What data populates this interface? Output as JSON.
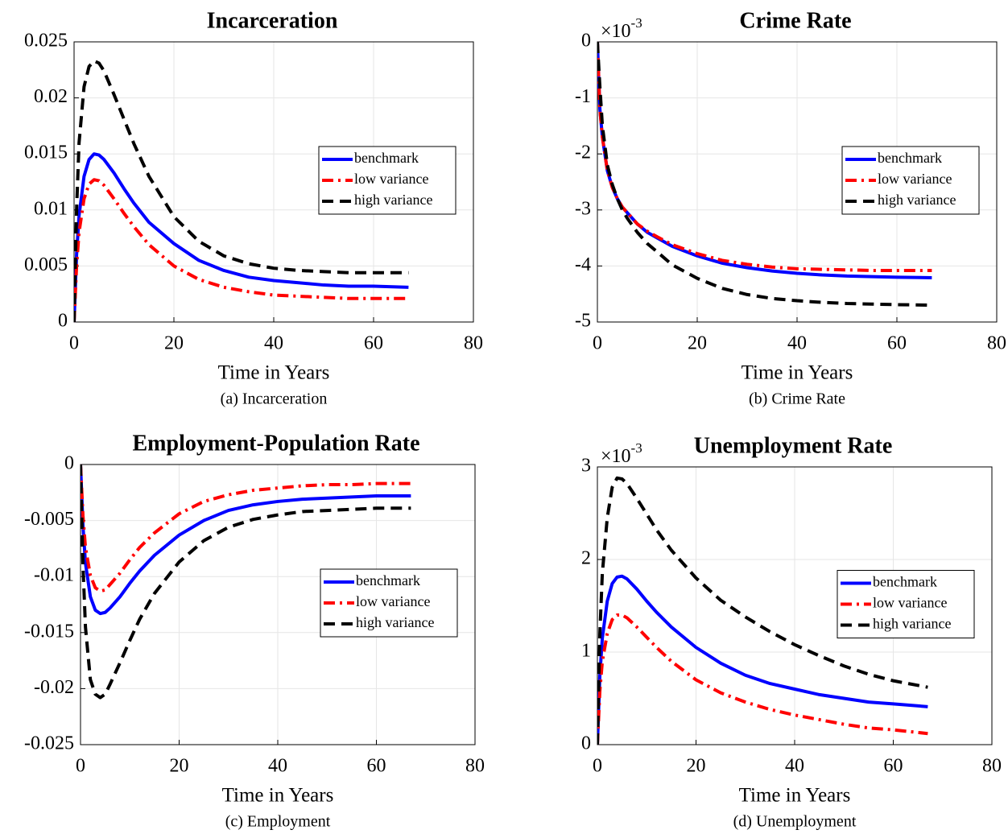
{
  "chart_data": [
    {
      "type": "line",
      "title": "Incarceration",
      "xlabel": "Time in Years",
      "caption": "(a) Incarceration",
      "x": [
        0,
        0.5,
        1,
        2,
        3,
        4,
        5,
        6,
        8,
        10,
        12,
        15,
        20,
        25,
        30,
        35,
        40,
        45,
        50,
        55,
        60,
        67
      ],
      "series": [
        {
          "name": "benchmark",
          "color": "#0000ff",
          "linestyle": "solid",
          "values": [
            0,
            0.006,
            0.0095,
            0.013,
            0.0145,
            0.015,
            0.0149,
            0.0145,
            0.0133,
            0.0119,
            0.0106,
            0.0089,
            0.007,
            0.0055,
            0.0046,
            0.004,
            0.0037,
            0.0035,
            0.0033,
            0.0032,
            0.0032,
            0.0031
          ]
        },
        {
          "name": "low variance",
          "color": "#ff0000",
          "linestyle": "dashdot",
          "values": [
            0,
            0.005,
            0.008,
            0.011,
            0.0123,
            0.0127,
            0.0126,
            0.0122,
            0.011,
            0.0097,
            0.0085,
            0.0069,
            0.005,
            0.0038,
            0.0031,
            0.0027,
            0.0024,
            0.0023,
            0.0022,
            0.0021,
            0.0021,
            0.0021
          ]
        },
        {
          "name": "high variance",
          "color": "#000000",
          "linestyle": "dashed",
          "values": [
            0,
            0.01,
            0.016,
            0.021,
            0.0228,
            0.0233,
            0.0231,
            0.0224,
            0.0203,
            0.0181,
            0.0159,
            0.013,
            0.0094,
            0.0072,
            0.0059,
            0.0052,
            0.0048,
            0.0046,
            0.0045,
            0.0044,
            0.0044,
            0.0044
          ]
        }
      ],
      "xlim": [
        0,
        80
      ],
      "xticks": [
        0,
        20,
        40,
        60,
        80
      ],
      "ylim": [
        0,
        0.025
      ],
      "yticks": [
        0,
        0.005,
        0.01,
        0.015,
        0.02,
        0.025
      ],
      "grid": true,
      "legend": "east"
    },
    {
      "type": "line",
      "title": "Crime Rate",
      "xlabel": "Time in Years",
      "caption": "(b) Crime Rate",
      "y_exponent": {
        "base": "×10",
        "power": "-3"
      },
      "x": [
        0,
        0.5,
        1,
        2,
        3,
        4,
        5,
        6,
        8,
        10,
        12,
        15,
        20,
        25,
        30,
        35,
        40,
        45,
        50,
        55,
        60,
        67
      ],
      "series": [
        {
          "name": "benchmark",
          "color": "#0000ff",
          "linestyle": "solid",
          "values": [
            0,
            -1.2,
            -1.7,
            -2.3,
            -2.6,
            -2.8,
            -2.95,
            -3.05,
            -3.25,
            -3.4,
            -3.5,
            -3.65,
            -3.82,
            -3.95,
            -4.03,
            -4.09,
            -4.13,
            -4.16,
            -4.18,
            -4.19,
            -4.2,
            -4.21
          ]
        },
        {
          "name": "low variance",
          "color": "#ff0000",
          "linestyle": "dashdot",
          "values": [
            0,
            -1.2,
            -1.7,
            -2.3,
            -2.6,
            -2.8,
            -2.95,
            -3.05,
            -3.25,
            -3.38,
            -3.48,
            -3.62,
            -3.78,
            -3.9,
            -3.97,
            -4.02,
            -4.05,
            -4.06,
            -4.07,
            -4.08,
            -4.08,
            -4.08
          ]
        },
        {
          "name": "high variance",
          "color": "#000000",
          "linestyle": "dashed",
          "values": [
            0,
            -0.8,
            -1.5,
            -2.2,
            -2.55,
            -2.8,
            -3,
            -3.15,
            -3.4,
            -3.6,
            -3.75,
            -3.98,
            -4.22,
            -4.4,
            -4.51,
            -4.58,
            -4.62,
            -4.65,
            -4.67,
            -4.68,
            -4.69,
            -4.7
          ]
        }
      ],
      "xlim": [
        0,
        80
      ],
      "xticks": [
        0,
        20,
        40,
        60,
        80
      ],
      "ylim": [
        -5,
        0
      ],
      "yticks": [
        -5,
        -4,
        -3,
        -2,
        -1,
        0
      ],
      "grid": true,
      "legend": "east"
    },
    {
      "type": "line",
      "title": "Employment-Population Rate",
      "xlabel": "Time in Years",
      "caption": "(c) Employment",
      "x": [
        0,
        0.5,
        1,
        2,
        3,
        4,
        5,
        6,
        8,
        10,
        12,
        15,
        20,
        25,
        30,
        35,
        40,
        45,
        50,
        55,
        60,
        67
      ],
      "series": [
        {
          "name": "benchmark",
          "color": "#0000ff",
          "linestyle": "solid",
          "values": [
            0,
            -0.0055,
            -0.0088,
            -0.0118,
            -0.013,
            -0.0133,
            -0.0132,
            -0.0128,
            -0.0118,
            -0.0106,
            -0.0095,
            -0.0081,
            -0.0063,
            -0.005,
            -0.0041,
            -0.0036,
            -0.0033,
            -0.0031,
            -0.003,
            -0.0029,
            -0.0028,
            -0.0028
          ]
        },
        {
          "name": "low variance",
          "color": "#ff0000",
          "linestyle": "dashdot",
          "values": [
            0,
            -0.0046,
            -0.0074,
            -0.0099,
            -0.011,
            -0.0113,
            -0.0112,
            -0.0107,
            -0.0097,
            -0.0085,
            -0.0074,
            -0.0061,
            -0.0044,
            -0.0033,
            -0.0027,
            -0.0023,
            -0.0021,
            -0.0019,
            -0.0018,
            -0.0018,
            -0.0017,
            -0.0017
          ]
        },
        {
          "name": "high variance",
          "color": "#000000",
          "linestyle": "dashed",
          "values": [
            0,
            -0.009,
            -0.0145,
            -0.0192,
            -0.0205,
            -0.0208,
            -0.0205,
            -0.0196,
            -0.0177,
            -0.0157,
            -0.0138,
            -0.0115,
            -0.0087,
            -0.0068,
            -0.0056,
            -0.0049,
            -0.0045,
            -0.0042,
            -0.0041,
            -0.004,
            -0.0039,
            -0.0039
          ]
        }
      ],
      "xlim": [
        0,
        80
      ],
      "xticks": [
        0,
        20,
        40,
        60,
        80
      ],
      "ylim": [
        -0.025,
        0
      ],
      "yticks": [
        -0.025,
        -0.02,
        -0.015,
        -0.01,
        -0.005,
        0
      ],
      "grid": true,
      "legend": "east"
    },
    {
      "type": "line",
      "title": "Unemployment Rate",
      "xlabel": "Time in Years",
      "caption": "(d) Unemployment",
      "y_exponent": {
        "base": "×10",
        "power": "-3"
      },
      "x": [
        0,
        0.5,
        1,
        2,
        3,
        4,
        5,
        6,
        8,
        10,
        12,
        15,
        20,
        25,
        30,
        35,
        40,
        45,
        50,
        55,
        60,
        67
      ],
      "series": [
        {
          "name": "benchmark",
          "color": "#0000ff",
          "linestyle": "solid",
          "values": [
            0,
            0.75,
            1.15,
            1.55,
            1.74,
            1.81,
            1.82,
            1.79,
            1.68,
            1.55,
            1.43,
            1.27,
            1.05,
            0.88,
            0.75,
            0.66,
            0.6,
            0.54,
            0.5,
            0.46,
            0.44,
            0.41
          ]
        },
        {
          "name": "low variance",
          "color": "#ff0000",
          "linestyle": "dashdot",
          "values": [
            0,
            0.58,
            0.9,
            1.2,
            1.35,
            1.4,
            1.4,
            1.37,
            1.27,
            1.16,
            1.05,
            0.9,
            0.7,
            0.56,
            0.46,
            0.38,
            0.32,
            0.27,
            0.22,
            0.18,
            0.16,
            0.12
          ]
        },
        {
          "name": "high variance",
          "color": "#000000",
          "linestyle": "dashed",
          "values": [
            0,
            1.2,
            1.85,
            2.45,
            2.78,
            2.88,
            2.87,
            2.82,
            2.66,
            2.49,
            2.32,
            2.1,
            1.8,
            1.56,
            1.38,
            1.22,
            1.08,
            0.96,
            0.85,
            0.76,
            0.69,
            0.62
          ]
        }
      ],
      "xlim": [
        0,
        80
      ],
      "xticks": [
        0,
        20,
        40,
        60,
        80
      ],
      "ylim": [
        0,
        3
      ],
      "yticks": [
        0,
        1,
        2,
        3
      ],
      "grid": true,
      "legend": "east"
    }
  ]
}
